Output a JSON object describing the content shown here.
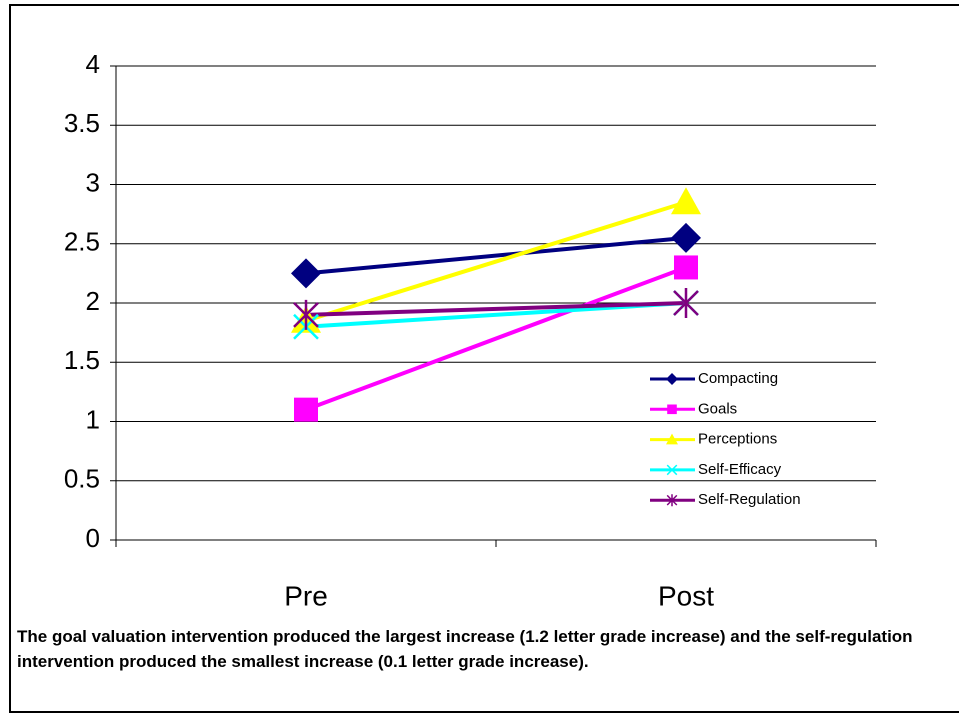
{
  "chart_data": {
    "type": "line",
    "categories": [
      "Pre",
      "Post"
    ],
    "series": [
      {
        "name": "Compacting",
        "color": "#000080",
        "marker": "diamond",
        "values": [
          2.25,
          2.55
        ]
      },
      {
        "name": "Goals",
        "color": "#ff00ff",
        "marker": "square",
        "values": [
          1.1,
          2.3
        ]
      },
      {
        "name": "Perceptions",
        "color": "#ffff00",
        "marker": "triangle",
        "values": [
          1.85,
          2.85
        ]
      },
      {
        "name": "Self-Efficacy",
        "color": "#00ffff",
        "marker": "x",
        "values": [
          1.8,
          2.0
        ]
      },
      {
        "name": "Self-Regulation",
        "color": "#800080",
        "marker": "star",
        "values": [
          1.9,
          2.0
        ]
      }
    ],
    "ylim": [
      0,
      4
    ],
    "yticks": [
      0,
      0.5,
      1,
      1.5,
      2,
      2.5,
      3,
      3.5,
      4
    ],
    "grid": true,
    "legend": "right",
    "caption": "The goal valuation intervention produced the largest increase (1.2 letter grade increase) and the self-regulation intervention produced the smallest increase (0.1 letter grade increase)."
  }
}
